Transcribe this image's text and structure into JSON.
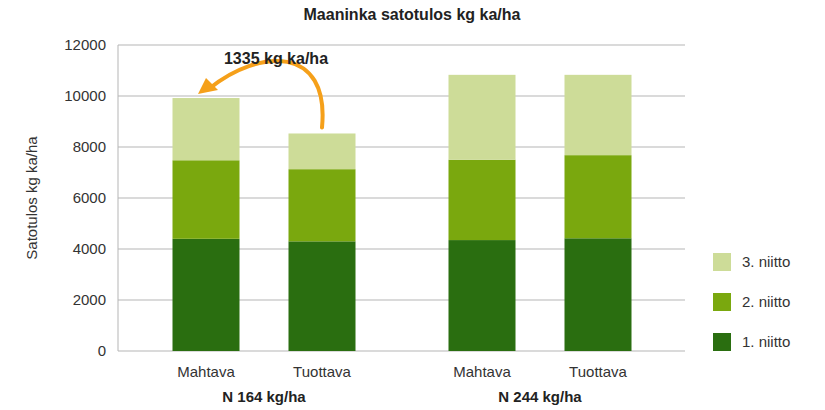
{
  "chart_data": {
    "type": "bar",
    "stacked": true,
    "title": "Maaninka satotulos kg ka/ha",
    "y_label": "Satotulos kg ka/ha",
    "categories": [
      "Mahtava",
      "Tuottava",
      "Mahtava",
      "Tuottava"
    ],
    "group_labels": [
      "N 164 kg/ha",
      "N 244 kg/ha"
    ],
    "annotation": "1335 kg ka/ha",
    "series": [
      {
        "name": "1. niitto",
        "color": "#2a6e10",
        "values": [
          4400,
          4300,
          4350,
          4420
        ]
      },
      {
        "name": "2. niitto",
        "color": "#7aa80e",
        "values": [
          3080,
          2830,
          3150,
          3260
        ]
      },
      {
        "name": "3. niitto",
        "color": "#cddc98",
        "values": [
          2440,
          1400,
          3330,
          3150
        ]
      }
    ],
    "ylim": [
      0,
      12000
    ],
    "yticks": [
      0,
      2000,
      4000,
      6000,
      8000,
      10000,
      12000
    ],
    "grid": true,
    "legend": "right"
  }
}
